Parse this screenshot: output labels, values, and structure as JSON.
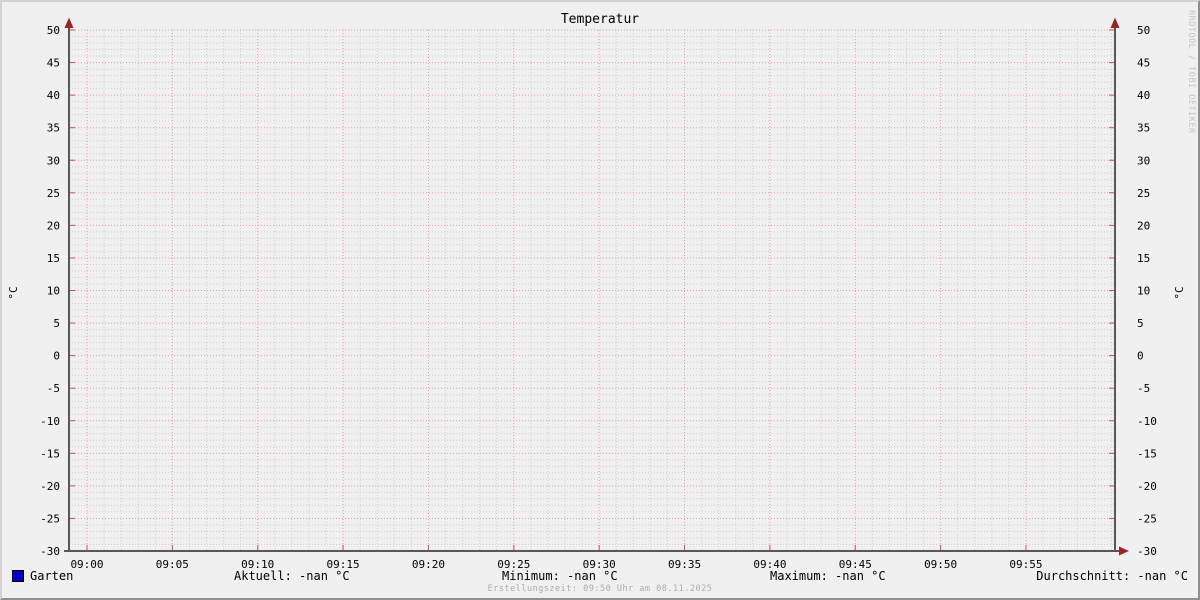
{
  "window": {
    "background": "#f0f0f0"
  },
  "chart": {
    "title": "Temperatur",
    "watermark": "RRDTOOL / TOBI OETIKER",
    "footer": "Erstellungszeit: 09:50 Uhr am 08.11.2025",
    "ylabel_left": "°C",
    "ylabel_right": "°C"
  },
  "chart_data": {
    "type": "line",
    "title": "Temperatur",
    "ylabel": "°C",
    "ylabel_right": "°C",
    "ylim": [
      -30,
      50
    ],
    "y_major_step": 5,
    "y_minor_step": 1,
    "y_tick_labels": [
      "50",
      "45",
      "40",
      "35",
      "30",
      "25",
      "20",
      "15",
      "10",
      "5",
      "0",
      "-5",
      "-10",
      "-15",
      "-20",
      "-25",
      "-30"
    ],
    "x_tick_labels": [
      "09:00",
      "09:05",
      "09:10",
      "09:15",
      "09:20",
      "09:25",
      "09:30",
      "09:35",
      "09:40",
      "09:45",
      "09:50",
      "09:55"
    ],
    "x_minor_per_major": 5,
    "grid": true,
    "legend_position": "bottom",
    "series": [
      {
        "name": "Garten",
        "color": "#0000cc",
        "values": []
      }
    ],
    "colors": {
      "major_grid": "#eb9c9c",
      "minor_grid": "#cfcfcf",
      "major_tick": "#c84f4f",
      "axis": "#585858",
      "arrow": "#992525",
      "text": "#000000"
    }
  },
  "legend": {
    "series": [
      {
        "label": "Garten",
        "color": "#0000cc"
      }
    ],
    "stats": [
      {
        "text": "Aktuell: -nan °C"
      },
      {
        "text": "Minimum: -nan °C"
      },
      {
        "text": "Maximum: -nan °C"
      },
      {
        "text": "Durchschnitt: -nan °C"
      }
    ]
  }
}
